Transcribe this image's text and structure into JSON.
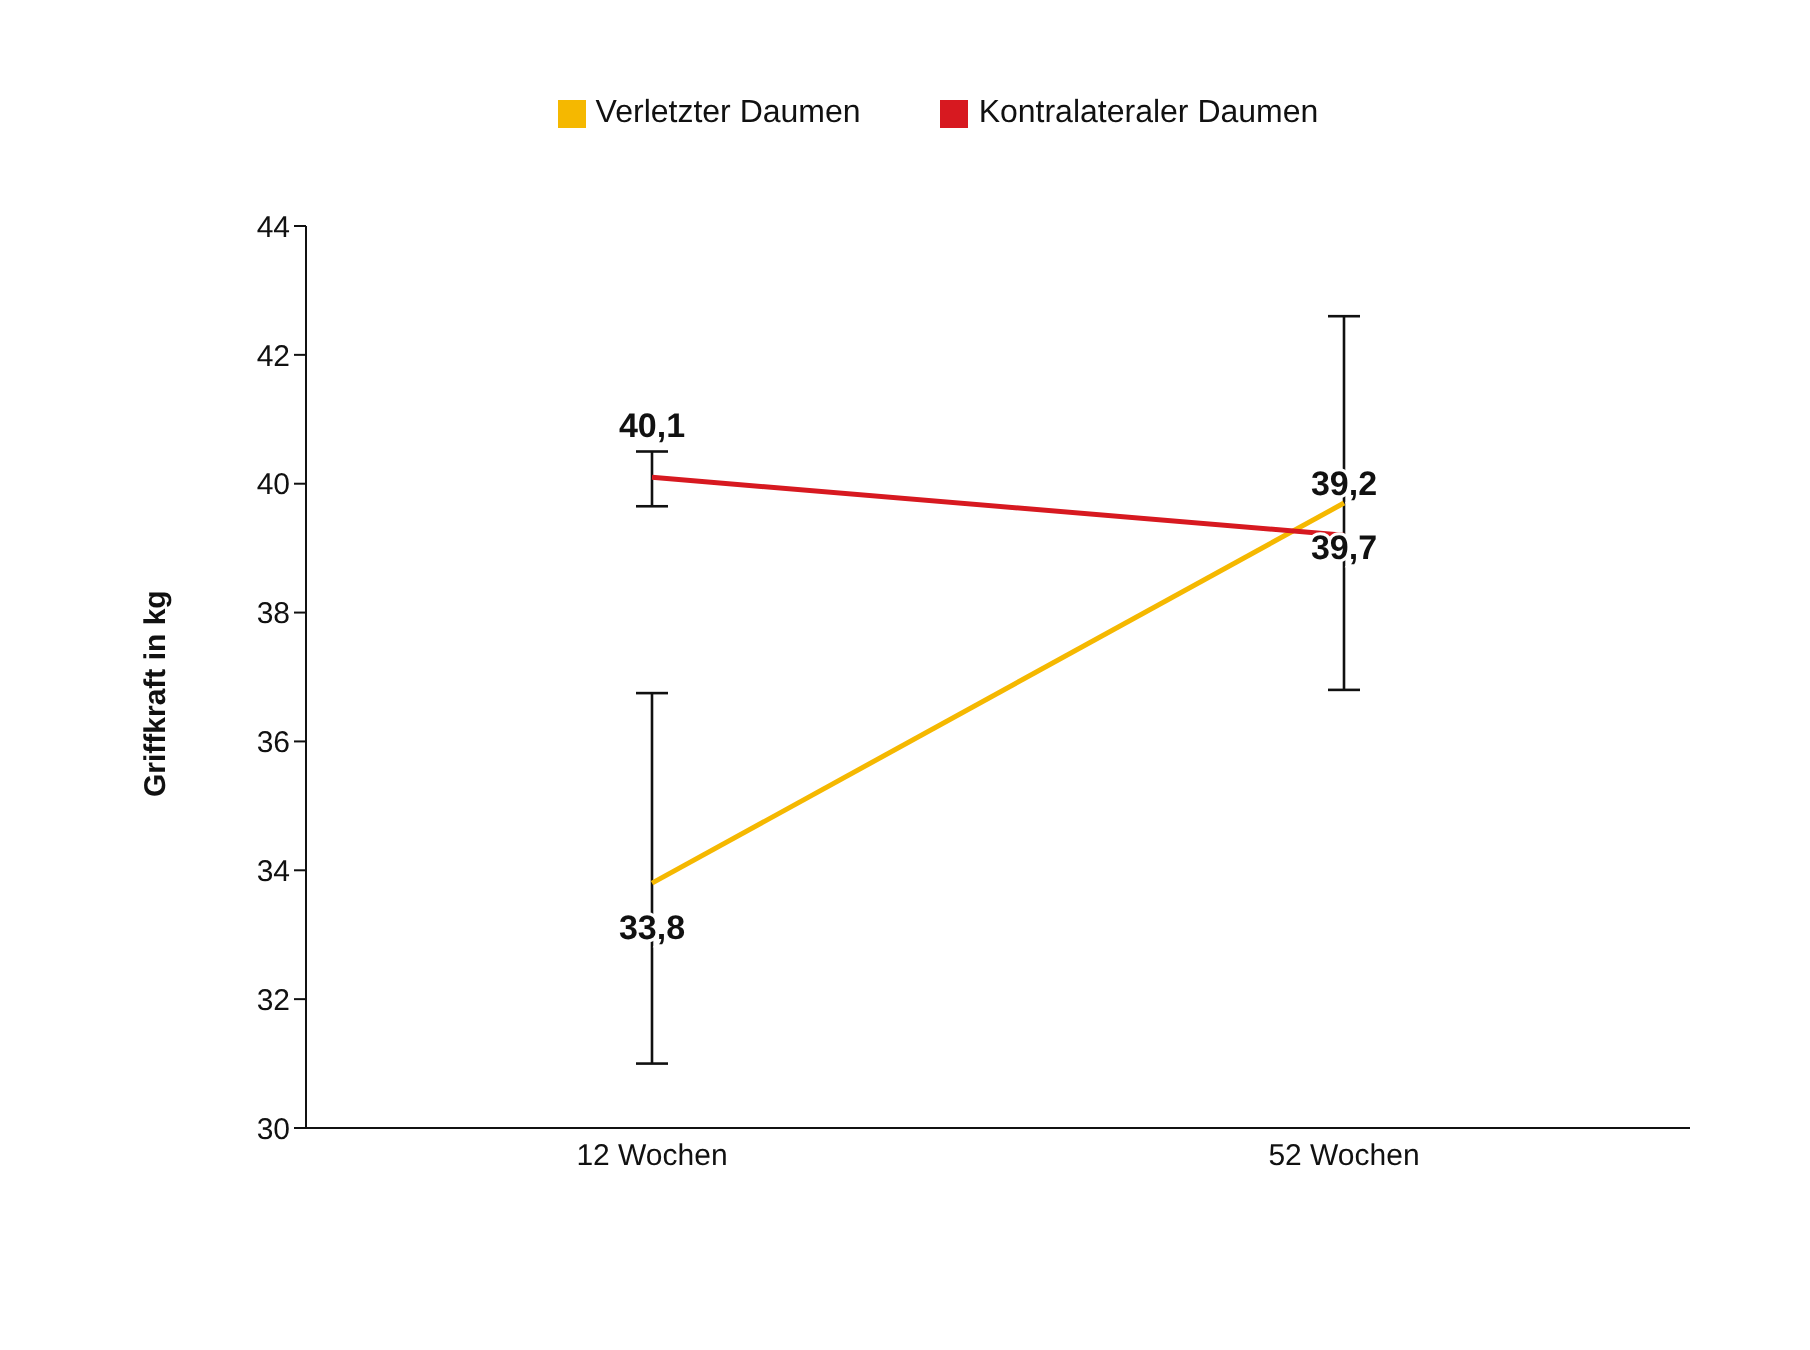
{
  "chart_data": {
    "type": "line",
    "ylabel": "Griffkraft in kg",
    "categories": [
      "12 Wochen",
      "52 Wochen"
    ],
    "series": [
      {
        "name": "Verletzter Daumen",
        "color": "#f5b800",
        "values": [
          33.8,
          39.7
        ],
        "errors": [
          [
            31,
            36.75
          ],
          [
            36.8,
            42.6
          ]
        ],
        "value_labels": [
          "33,8",
          "39,7"
        ]
      },
      {
        "name": "Kontralateraler Daumen",
        "color": "#d71920",
        "values": [
          40.1,
          39.2
        ],
        "errors": [
          [
            39.65,
            40.5
          ],
          null
        ],
        "value_labels": [
          "40,1",
          "39,2"
        ]
      }
    ],
    "ylim": [
      30,
      44
    ],
    "yticks": [
      30,
      32,
      34,
      36,
      38,
      40,
      42,
      44
    ],
    "legend": "top",
    "marker": "none",
    "line_style": "solid"
  }
}
